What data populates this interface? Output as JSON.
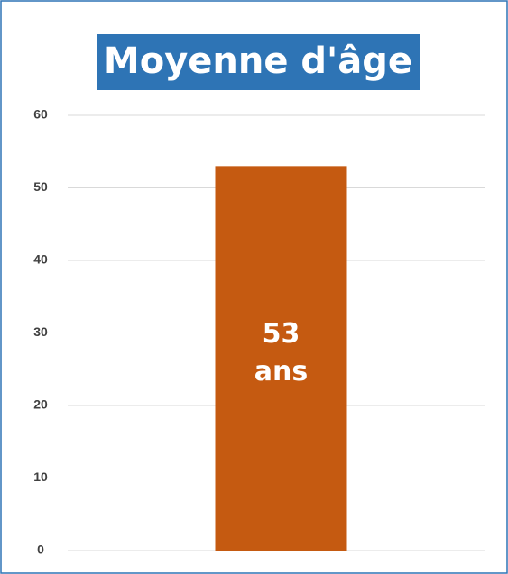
{
  "chart_data": {
    "type": "bar",
    "title": "Moyenne d'âge",
    "categories": [
      null
    ],
    "values": [
      53
    ],
    "value_labels": [
      "53 ans"
    ],
    "color": "#c55a11",
    "ylim": [
      0,
      60
    ],
    "yticks": [
      0,
      10,
      20,
      30,
      40,
      50,
      60
    ],
    "grid": true
  }
}
